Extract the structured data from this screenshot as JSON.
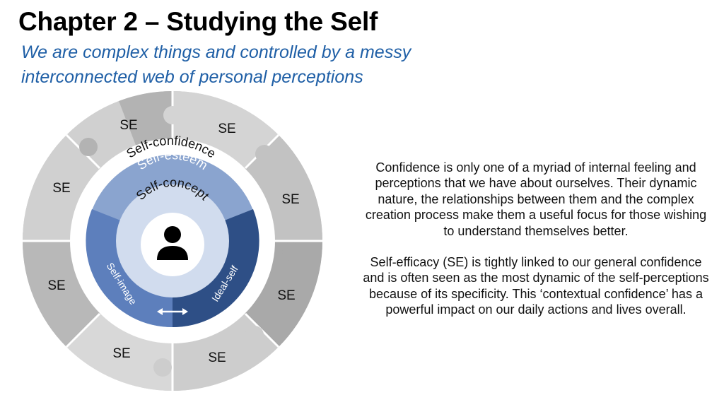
{
  "header": {
    "title": "Chapter 2 – Studying the Self",
    "subtitle_line1": "We are complex things and controlled by a messy",
    "subtitle_line2": "interconnected web of personal perceptions"
  },
  "diagram": {
    "outer_segment_label": "SE",
    "outer_segment_count": 8,
    "ring_self_confidence": "Self-confidence",
    "ring_self_esteem": "Self-esteem",
    "inner_self_concept": "Self-concept",
    "left_arc_label": "Self-image",
    "right_arc_label": "Ideal-self",
    "center_icon": "person-icon",
    "arrow_icon": "double-arrow-icon",
    "colors": {
      "outer_light": "#d3d3d3",
      "outer_dark": "#b1b1b1",
      "self_esteem": "#8aa4cf",
      "self_image": "#5d7fbc",
      "ideal_self": "#2e4f86",
      "self_concept": "#d1dcee"
    }
  },
  "body": {
    "paragraph1": "Confidence is only one of a myriad of internal feeling and perceptions that we have about ourselves. Their dynamic nature, the relationships between them and the complex creation process make them a useful focus for those wishing to understand themselves better.",
    "paragraph2": "Self-efficacy (SE) is tightly linked to our general confidence and is often seen as the most dynamic of the self-perceptions because of its specificity. This ‘contextual confidence’ has a powerful impact on our daily actions and lives overall."
  }
}
